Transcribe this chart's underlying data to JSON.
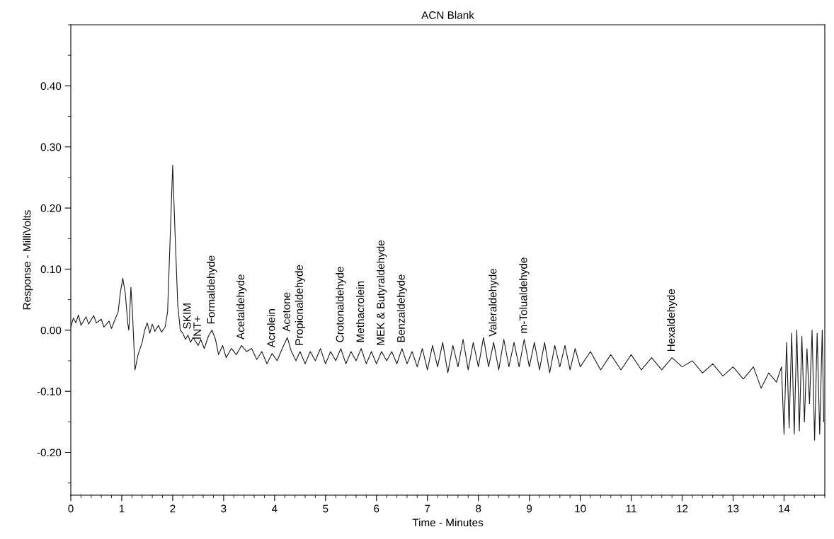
{
  "chart_data": {
    "type": "line",
    "title": "ACN Blank",
    "xlabel": "Time - Minutes",
    "ylabel": "Response - MilliVolts",
    "xlim": [
      0,
      14.8
    ],
    "xticks": [
      0,
      1,
      2,
      3,
      4,
      5,
      6,
      7,
      8,
      9,
      10,
      11,
      12,
      13,
      14
    ],
    "ylim": [
      -0.27,
      0.5
    ],
    "yticks": [
      {
        "value": -0.2,
        "label": "-0.20"
      },
      {
        "value": -0.1,
        "label": "-0.10"
      },
      {
        "value": 0,
        "label": "0.00"
      },
      {
        "value": 0.1,
        "label": "0.10"
      },
      {
        "value": 0.2,
        "label": "0.20"
      },
      {
        "value": 0.3,
        "label": "0.30"
      },
      {
        "value": 0.4,
        "label": "0.40"
      }
    ],
    "grid": false,
    "marker": "none",
    "line_style": "solid",
    "series": [
      {
        "color": "#1a1a1a",
        "x": [
          0.0,
          0.05,
          0.1,
          0.15,
          0.2,
          0.3,
          0.35,
          0.45,
          0.5,
          0.6,
          0.65,
          0.75,
          0.8,
          0.88,
          0.93,
          0.97,
          1.02,
          1.07,
          1.12,
          1.14,
          1.18,
          1.21,
          1.26,
          1.32,
          1.4,
          1.45,
          1.5,
          1.55,
          1.6,
          1.65,
          1.72,
          1.78,
          1.85,
          1.9,
          1.95,
          2.0,
          2.05,
          2.1,
          2.15,
          2.2,
          2.25,
          2.3,
          2.35,
          2.4,
          2.5,
          2.55,
          2.62,
          2.7,
          2.77,
          2.84,
          2.9,
          2.98,
          3.05,
          3.15,
          3.25,
          3.35,
          3.45,
          3.55,
          3.65,
          3.75,
          3.85,
          3.95,
          4.05,
          4.15,
          4.25,
          4.33,
          4.42,
          4.5,
          4.6,
          4.7,
          4.8,
          4.9,
          5.0,
          5.1,
          5.2,
          5.3,
          5.4,
          5.5,
          5.6,
          5.7,
          5.8,
          5.9,
          6.0,
          6.1,
          6.2,
          6.3,
          6.4,
          6.5,
          6.6,
          6.7,
          6.8,
          6.9,
          7.0,
          7.1,
          7.2,
          7.3,
          7.4,
          7.5,
          7.6,
          7.7,
          7.8,
          7.9,
          8.0,
          8.1,
          8.2,
          8.3,
          8.4,
          8.5,
          8.6,
          8.7,
          8.8,
          8.9,
          9.0,
          9.1,
          9.2,
          9.3,
          9.4,
          9.5,
          9.6,
          9.7,
          9.8,
          9.9,
          10.0,
          10.2,
          10.4,
          10.6,
          10.8,
          11.0,
          11.2,
          11.4,
          11.6,
          11.8,
          12.0,
          12.2,
          12.4,
          12.6,
          12.8,
          13.0,
          13.2,
          13.4,
          13.55,
          13.7,
          13.85,
          13.95,
          14.0,
          14.05,
          14.1,
          14.15,
          14.2,
          14.25,
          14.3,
          14.35,
          14.4,
          14.45,
          14.5,
          14.55,
          14.6,
          14.65,
          14.7,
          14.75,
          14.78
        ],
        "values": [
          0.005,
          0.02,
          0.012,
          0.025,
          0.008,
          0.022,
          0.01,
          0.024,
          0.012,
          0.018,
          0.005,
          0.015,
          0.003,
          0.02,
          0.03,
          0.06,
          0.085,
          0.06,
          0.01,
          0.0,
          0.07,
          0.03,
          -0.065,
          -0.04,
          -0.02,
          0.0,
          0.012,
          -0.005,
          0.01,
          -0.002,
          0.008,
          -0.003,
          0.005,
          0.03,
          0.15,
          0.27,
          0.15,
          0.04,
          0.0,
          -0.005,
          -0.015,
          -0.008,
          -0.02,
          -0.012,
          -0.025,
          -0.015,
          -0.03,
          -0.01,
          0.0,
          -0.015,
          -0.04,
          -0.025,
          -0.045,
          -0.03,
          -0.04,
          -0.025,
          -0.035,
          -0.03,
          -0.048,
          -0.035,
          -0.055,
          -0.038,
          -0.05,
          -0.03,
          -0.012,
          -0.035,
          -0.05,
          -0.035,
          -0.055,
          -0.035,
          -0.05,
          -0.03,
          -0.055,
          -0.035,
          -0.05,
          -0.03,
          -0.055,
          -0.035,
          -0.05,
          -0.03,
          -0.055,
          -0.035,
          -0.055,
          -0.035,
          -0.05,
          -0.035,
          -0.055,
          -0.03,
          -0.055,
          -0.035,
          -0.06,
          -0.03,
          -0.065,
          -0.025,
          -0.06,
          -0.02,
          -0.07,
          -0.025,
          -0.06,
          -0.015,
          -0.065,
          -0.02,
          -0.06,
          -0.012,
          -0.06,
          -0.02,
          -0.065,
          -0.015,
          -0.06,
          -0.02,
          -0.06,
          -0.015,
          -0.06,
          -0.02,
          -0.065,
          -0.02,
          -0.07,
          -0.025,
          -0.06,
          -0.025,
          -0.065,
          -0.03,
          -0.06,
          -0.035,
          -0.065,
          -0.04,
          -0.065,
          -0.04,
          -0.065,
          -0.045,
          -0.065,
          -0.045,
          -0.06,
          -0.05,
          -0.07,
          -0.055,
          -0.075,
          -0.06,
          -0.08,
          -0.06,
          -0.095,
          -0.07,
          -0.085,
          -0.06,
          -0.17,
          -0.02,
          -0.16,
          -0.005,
          -0.17,
          0.0,
          -0.165,
          -0.01,
          -0.15,
          -0.03,
          -0.12,
          0.0,
          -0.18,
          -0.005,
          -0.17,
          0.0,
          -0.15
        ]
      }
    ],
    "annotations": [
      {
        "text": "SKIM",
        "x": 2.3,
        "y": -0.008
      },
      {
        "text": "INT+",
        "x": 2.5,
        "y": -0.025
      },
      {
        "text": "Formaldehyde",
        "x": 2.77,
        "y": 0.0
      },
      {
        "text": "Acetaldehyde",
        "x": 3.35,
        "y": -0.025
      },
      {
        "text": "Acrolein",
        "x": 3.95,
        "y": -0.038
      },
      {
        "text": "Acetone",
        "x": 4.25,
        "y": -0.012
      },
      {
        "text": "Propionaldehyde",
        "x": 4.5,
        "y": -0.035
      },
      {
        "text": "Crotonaldehyde",
        "x": 5.3,
        "y": -0.03
      },
      {
        "text": "Methacrolein",
        "x": 5.7,
        "y": -0.03
      },
      {
        "text": "MEK & Butyraldehyde",
        "x": 6.1,
        "y": -0.035
      },
      {
        "text": "Benzaldehyde",
        "x": 6.5,
        "y": -0.03
      },
      {
        "text": "Valeraldehyde",
        "x": 8.3,
        "y": -0.02
      },
      {
        "text": "m-Tolualdehyde",
        "x": 8.9,
        "y": -0.015
      },
      {
        "text": "Hexaldehyde",
        "x": 11.8,
        "y": -0.045
      }
    ]
  }
}
